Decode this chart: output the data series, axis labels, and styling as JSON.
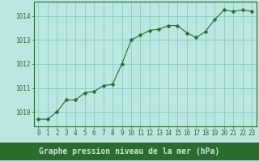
{
  "x": [
    0,
    1,
    2,
    3,
    4,
    5,
    6,
    7,
    8,
    9,
    10,
    11,
    12,
    13,
    14,
    15,
    16,
    17,
    18,
    19,
    20,
    21,
    22,
    23
  ],
  "y": [
    1009.7,
    1009.7,
    1010.0,
    1010.5,
    1010.5,
    1010.8,
    1010.85,
    1011.1,
    1011.15,
    1012.0,
    1013.0,
    1013.2,
    1013.4,
    1013.45,
    1013.6,
    1013.6,
    1013.3,
    1013.1,
    1013.35,
    1013.85,
    1014.25,
    1014.2,
    1014.25,
    1014.2
  ],
  "line_color": "#2d6a2d",
  "marker": "D",
  "marker_size": 2.5,
  "bg_color": "#b8e8e0",
  "plot_bg_color": "#b8e8e0",
  "grid_color": "#90c8c0",
  "border_color": "#2d6a2d",
  "xlabel": "Graphe pression niveau de la mer (hPa)",
  "xlabel_color": "#2d6a2d",
  "xlabel_fontsize": 7,
  "xlabel_bg": "#2d6a2d",
  "xlabel_text_color": "#b8e8e0",
  "ytick_labels": [
    "1010",
    "1011",
    "1012",
    "1013",
    "1014"
  ],
  "ylim": [
    1009.4,
    1014.6
  ],
  "xlim": [
    -0.5,
    23.5
  ],
  "yticks": [
    1010,
    1011,
    1012,
    1013,
    1014
  ],
  "xticks": [
    0,
    1,
    2,
    3,
    4,
    5,
    6,
    7,
    8,
    9,
    10,
    11,
    12,
    13,
    14,
    15,
    16,
    17,
    18,
    19,
    20,
    21,
    22,
    23
  ],
  "tick_color": "#2d6a2d",
  "tick_fontsize": 5.5,
  "fig_bg": "#b8e8e0"
}
